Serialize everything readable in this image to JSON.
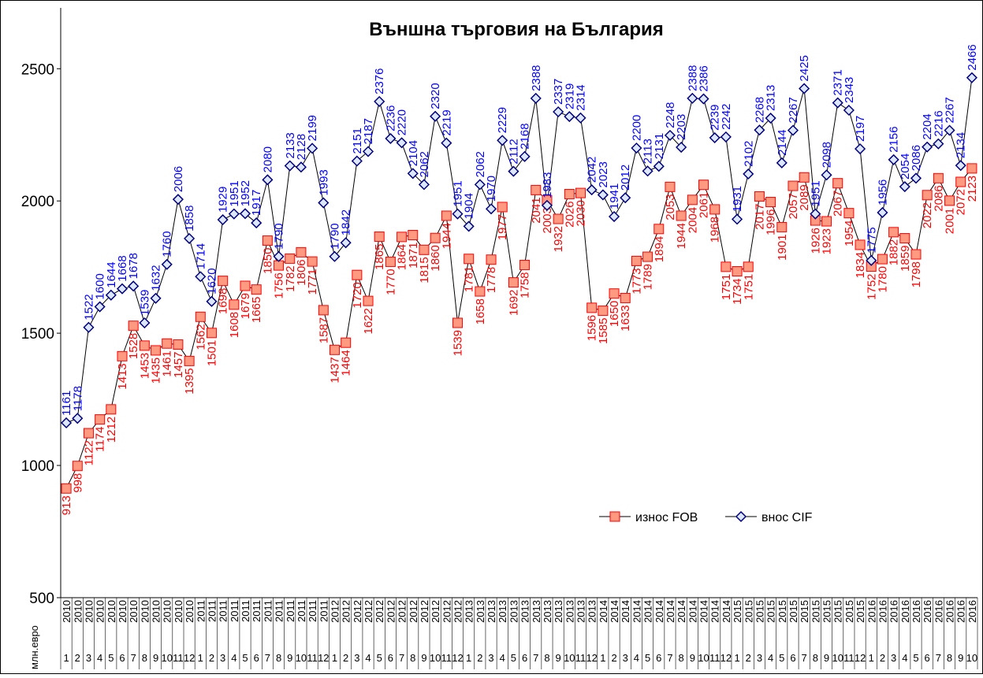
{
  "chart_data": {
    "type": "line",
    "title": "Външна търговия на България",
    "y_label": "млн.евро",
    "category_years": [
      "2010",
      "2010",
      "2010",
      "2010",
      "2010",
      "2010",
      "2010",
      "2010",
      "2010",
      "2010",
      "2010",
      "2010",
      "2011",
      "2011",
      "2011",
      "2011",
      "2011",
      "2011",
      "2011",
      "2011",
      "2011",
      "2011",
      "2011",
      "2011",
      "2012",
      "2012",
      "2012",
      "2012",
      "2012",
      "2012",
      "2012",
      "2012",
      "2012",
      "2012",
      "2012",
      "2012",
      "2013",
      "2013",
      "2013",
      "2013",
      "2013",
      "2013",
      "2013",
      "2013",
      "2013",
      "2013",
      "2013",
      "2013",
      "2014",
      "2014",
      "2014",
      "2014",
      "2014",
      "2014",
      "2014",
      "2014",
      "2014",
      "2014",
      "2014",
      "2014",
      "2015",
      "2015",
      "2015",
      "2015",
      "2015",
      "2015",
      "2015",
      "2015",
      "2015",
      "2015",
      "2015",
      "2015",
      "2016",
      "2016",
      "2016",
      "2016",
      "2016",
      "2016",
      "2016",
      "2016",
      "2016",
      "2016"
    ],
    "categories": [
      "1",
      "2",
      "3",
      "4",
      "5",
      "6",
      "7",
      "8",
      "9",
      "10",
      "11",
      "12",
      "1",
      "2",
      "3",
      "4",
      "5",
      "6",
      "7",
      "8",
      "9",
      "10",
      "11",
      "12",
      "1",
      "2",
      "3",
      "4",
      "5",
      "6",
      "7",
      "8",
      "9",
      "10",
      "11",
      "12",
      "1",
      "2",
      "3",
      "4",
      "5",
      "6",
      "7",
      "8",
      "9",
      "10",
      "11",
      "12",
      "1",
      "2",
      "3",
      "4",
      "5",
      "6",
      "7",
      "8",
      "9",
      "10",
      "11",
      "12",
      "1",
      "2",
      "3",
      "4",
      "5",
      "6",
      "7",
      "8",
      "9",
      "10",
      "11",
      "12",
      "1",
      "2",
      "3",
      "4",
      "5",
      "6",
      "7",
      "8",
      "9",
      "10"
    ],
    "series": [
      {
        "name": "износ FOB",
        "color": "#ff0000",
        "marker_fill": "#ff9980",
        "marker": "square",
        "values": [
          913,
          998,
          1122,
          1174,
          1212,
          1413,
          1528,
          1453,
          1435,
          1461,
          1457,
          1395,
          1562,
          1501,
          1698,
          1608,
          1679,
          1665,
          1850,
          1756,
          1782,
          1806,
          1771,
          1587,
          1437,
          1464,
          1720,
          1622,
          1865,
          1770,
          1864,
          1871,
          1815,
          1860,
          1944,
          1539,
          1781,
          1658,
          1778,
          1977,
          1692,
          1758,
          2041,
          2003,
          1932,
          2026,
          2030,
          1596,
          1585,
          1650,
          1633,
          1773,
          1789,
          1894,
          2053,
          1944,
          2004,
          2061,
          1968,
          1751,
          1734,
          1751,
          2017,
          1996,
          1901,
          2057,
          2089,
          1926,
          1923,
          2067,
          1954,
          1834,
          1752,
          1780,
          1882,
          1859,
          1798,
          2022,
          2086,
          2001,
          2072,
          2123
        ]
      },
      {
        "name": "внос CIF",
        "color": "#0000ff",
        "marker_fill": "#dde8ff",
        "marker": "diamond",
        "values": [
          1161,
          1178,
          1522,
          1600,
          1644,
          1668,
          1678,
          1539,
          1632,
          1760,
          2006,
          1858,
          1714,
          1620,
          1929,
          1951,
          1952,
          1917,
          2080,
          1790,
          2133,
          2128,
          2199,
          1993,
          1790,
          1842,
          2151,
          2187,
          2376,
          2236,
          2220,
          2104,
          2062,
          2320,
          2219,
          1951,
          1904,
          2062,
          1970,
          2229,
          2112,
          2168,
          2388,
          1983,
          2337,
          2319,
          2314,
          2042,
          2023,
          1941,
          2012,
          2200,
          2113,
          2131,
          2248,
          2203,
          2388,
          2386,
          2239,
          2242,
          1931,
          2102,
          2268,
          2313,
          2144,
          2267,
          2425,
          1951,
          2098,
          2371,
          2343,
          2197,
          1775,
          1956,
          2156,
          2054,
          2086,
          2204,
          2216,
          2267,
          2134,
          2466
        ]
      }
    ],
    "ylim": [
      500,
      2730
    ],
    "yticks": [
      500,
      1000,
      1500,
      2000,
      2500
    ]
  }
}
